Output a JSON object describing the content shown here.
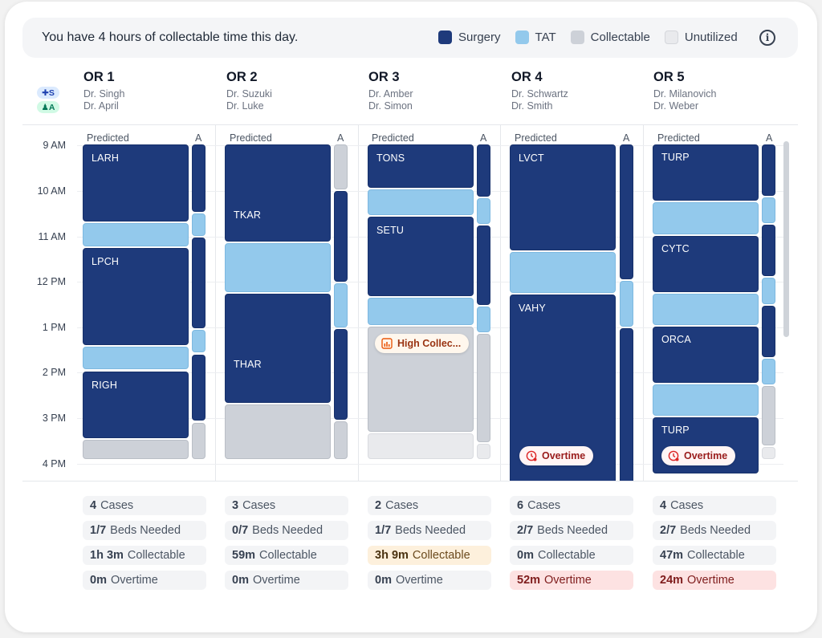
{
  "header": {
    "message": "You have 4 hours of collectable time this day.",
    "legend": [
      {
        "label": "Surgery",
        "color": "#1e3a7b"
      },
      {
        "label": "TAT",
        "color": "#93c9ec"
      },
      {
        "label": "Collectable",
        "color": "#cdd1d8"
      },
      {
        "label": "Unutilized",
        "color": "#e9eaed"
      }
    ],
    "info_icon": "info-icon",
    "info_glyph": "i"
  },
  "roles": {
    "surgeon": "S",
    "anesthesia": "A"
  },
  "times": [
    "9 AM",
    "10 AM",
    "11 AM",
    "12 PM",
    "1 PM",
    "2 PM",
    "3 PM",
    "4 PM"
  ],
  "column_labels": {
    "predicted": "Predicted",
    "actual": "A"
  },
  "rooms": [
    {
      "name": "OR 1",
      "surgeon": "Dr. Singh",
      "anesthesia": "Dr. April"
    },
    {
      "name": "OR 2",
      "surgeon": "Dr. Suzuki",
      "anesthesia": "Dr. Luke"
    },
    {
      "name": "OR 3",
      "surgeon": "Dr. Amber",
      "anesthesia": "Dr. Simon"
    },
    {
      "name": "OR 4",
      "surgeon": "Dr. Schwartz",
      "anesthesia": "Dr. Smith"
    },
    {
      "name": "OR 5",
      "surgeon": "Dr. Milanovich",
      "anesthesia": "Dr. Weber"
    }
  ],
  "cases": {
    "or1": [
      "LARH",
      "LPCH",
      "RIGH"
    ],
    "or2": [
      "TKAR",
      "THAR"
    ],
    "or3": [
      "TONS",
      "SETU"
    ],
    "or4": [
      "LVCT",
      "VAHY"
    ],
    "or5": [
      "TURP",
      "CYTC",
      "ORCA",
      "TURP"
    ]
  },
  "badges": {
    "high_collectable": "High Collec...",
    "overtime": "Overtime"
  },
  "summary": [
    {
      "cases": "4",
      "cases_label": "Cases",
      "beds": "1/7",
      "beds_label": "Beds Needed",
      "collectable": "1h 3m",
      "collectable_label": "Collectable",
      "overtime": "0m",
      "overtime_label": "Overtime"
    },
    {
      "cases": "3",
      "cases_label": "Cases",
      "beds": "0/7",
      "beds_label": "Beds Needed",
      "collectable": "59m",
      "collectable_label": "Collectable",
      "overtime": "0m",
      "overtime_label": "Overtime"
    },
    {
      "cases": "2",
      "cases_label": "Cases",
      "beds": "1/7",
      "beds_label": "Beds Needed",
      "collectable": "3h 9m",
      "collectable_label": "Collectable",
      "overtime": "0m",
      "overtime_label": "Overtime"
    },
    {
      "cases": "6",
      "cases_label": "Cases",
      "beds": "2/7",
      "beds_label": "Beds Needed",
      "collectable": "0m",
      "collectable_label": "Collectable",
      "overtime": "52m",
      "overtime_label": "Overtime"
    },
    {
      "cases": "4",
      "cases_label": "Cases",
      "beds": "2/7",
      "beds_label": "Beds Needed",
      "collectable": "47m",
      "collectable_label": "Collectable",
      "overtime": "24m",
      "overtime_label": "Overtime"
    }
  ]
}
